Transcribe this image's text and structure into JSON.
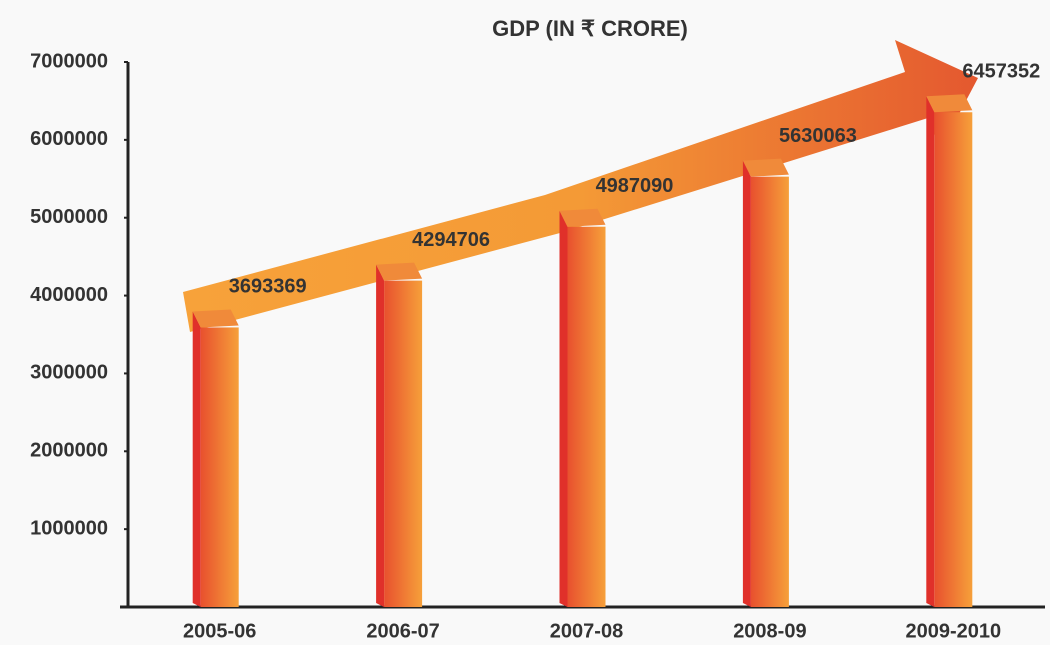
{
  "chart_data": {
    "type": "bar",
    "title": "GDP (IN ₹ CRORE)",
    "categories": [
      "2005-06",
      "2006-07",
      "2007-08",
      "2008-09",
      "2009-2010"
    ],
    "values": [
      3693369,
      4294706,
      4987090,
      5630063,
      6457352
    ],
    "color": "#f07a2e",
    "ylim": [
      0,
      7000000
    ],
    "yticks": [
      1000000,
      2000000,
      3000000,
      4000000,
      5000000,
      6000000,
      7000000
    ],
    "grid": false
  }
}
